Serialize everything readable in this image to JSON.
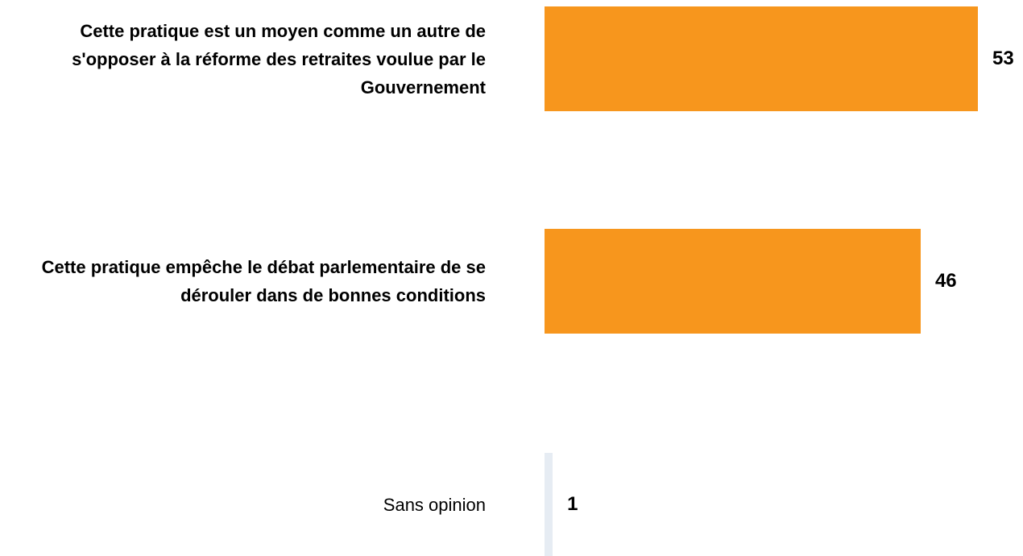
{
  "chart_data": {
    "type": "bar",
    "orientation": "horizontal",
    "categories": [
      "Cette pratique est un moyen comme un autre de s'opposer à la réforme des retraites voulue par le Gouvernement",
      "Cette pratique empêche le débat parlementaire de se dérouler dans de bonnes conditions",
      "Sans opinion"
    ],
    "values": [
      53,
      46,
      1
    ],
    "colors": [
      "#f7961d",
      "#f7961d",
      "#e6ecf3"
    ]
  }
}
